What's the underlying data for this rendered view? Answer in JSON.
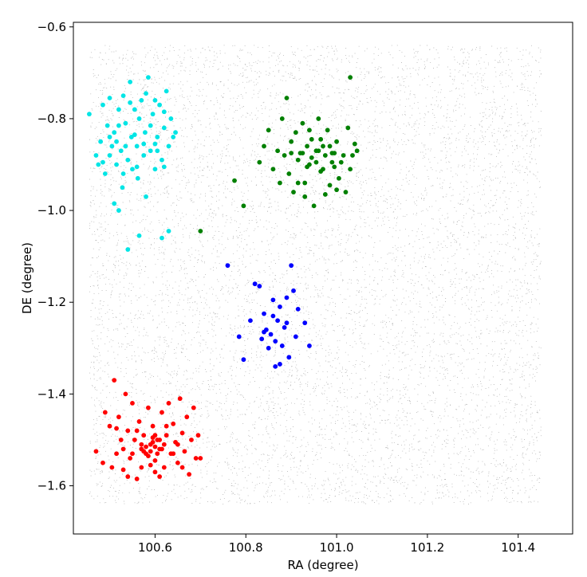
{
  "chart_data": {
    "type": "scatter",
    "title": "",
    "xlabel": "RA (degree)",
    "ylabel": "DE (degree)",
    "xlim": [
      100.42,
      101.52
    ],
    "ylim": [
      -1.705,
      -0.59
    ],
    "xticks": [
      100.6,
      100.8,
      101.0,
      101.2,
      101.4
    ],
    "xtick_labels": [
      "100.6",
      "100.8",
      "101.0",
      "101.2",
      "101.4"
    ],
    "yticks": [
      -0.6,
      -0.8,
      -1.0,
      -1.2,
      -1.4,
      -1.6
    ],
    "ytick_labels": [
      "−0.6",
      "−0.8",
      "−1.0",
      "−1.2",
      "−1.4",
      "−1.6"
    ],
    "grid": false,
    "background_field": {
      "color": "#808080",
      "x_range": [
        100.455,
        101.45
      ],
      "y_range": [
        -1.64,
        -0.64
      ],
      "count": 9000
    },
    "series": [
      {
        "color": "#00e5e5",
        "points": [
          [
            100.455,
            -0.79
          ],
          [
            100.47,
            -0.88
          ],
          [
            100.475,
            -0.9
          ],
          [
            100.48,
            -0.85
          ],
          [
            100.485,
            -0.77
          ],
          [
            100.49,
            -0.92
          ],
          [
            100.495,
            -0.815
          ],
          [
            100.5,
            -0.755
          ],
          [
            100.505,
            -0.86
          ],
          [
            100.51,
            -0.83
          ],
          [
            100.515,
            -0.9
          ],
          [
            100.52,
            -0.78
          ],
          [
            100.525,
            -0.87
          ],
          [
            100.528,
            -0.95
          ],
          [
            100.53,
            -0.75
          ],
          [
            100.535,
            -0.81
          ],
          [
            100.54,
            -0.89
          ],
          [
            100.545,
            -0.72
          ],
          [
            100.548,
            -0.84
          ],
          [
            100.55,
            -0.91
          ],
          [
            100.555,
            -0.78
          ],
          [
            100.56,
            -0.86
          ],
          [
            100.562,
            -0.93
          ],
          [
            100.565,
            -0.8
          ],
          [
            100.57,
            -0.76
          ],
          [
            100.575,
            -0.88
          ],
          [
            100.578,
            -0.83
          ],
          [
            100.58,
            -0.97
          ],
          [
            100.585,
            -0.71
          ],
          [
            100.59,
            -0.87
          ],
          [
            100.595,
            -0.79
          ],
          [
            100.6,
            -0.91
          ],
          [
            100.605,
            -0.84
          ],
          [
            100.61,
            -0.77
          ],
          [
            100.615,
            -0.89
          ],
          [
            100.62,
            -0.82
          ],
          [
            100.625,
            -0.74
          ],
          [
            100.63,
            -0.86
          ],
          [
            100.635,
            -0.8
          ],
          [
            100.64,
            -0.84
          ],
          [
            100.645,
            -0.83
          ],
          [
            100.5,
            -0.88
          ],
          [
            100.51,
            -0.985
          ],
          [
            100.52,
            -1.0
          ],
          [
            100.54,
            -1.085
          ],
          [
            100.565,
            -1.055
          ],
          [
            100.615,
            -1.06
          ],
          [
            100.63,
            -1.045
          ],
          [
            100.5,
            -0.84
          ],
          [
            100.52,
            -0.815
          ],
          [
            100.535,
            -0.86
          ],
          [
            100.555,
            -0.835
          ],
          [
            100.575,
            -0.855
          ],
          [
            100.59,
            -0.815
          ],
          [
            100.605,
            -0.87
          ],
          [
            100.485,
            -0.895
          ],
          [
            100.6,
            -0.855
          ],
          [
            100.62,
            -0.905
          ],
          [
            100.58,
            -0.745
          ],
          [
            100.53,
            -0.92
          ],
          [
            100.56,
            -0.905
          ],
          [
            100.6,
            -0.76
          ],
          [
            100.515,
            -0.85
          ],
          [
            100.545,
            -0.765
          ],
          [
            100.62,
            -0.785
          ]
        ]
      },
      {
        "color": "#008000",
        "points": [
          [
            100.7,
            -1.045
          ],
          [
            100.775,
            -0.935
          ],
          [
            100.795,
            -0.99
          ],
          [
            100.83,
            -0.895
          ],
          [
            100.84,
            -0.86
          ],
          [
            100.85,
            -0.825
          ],
          [
            100.86,
            -0.91
          ],
          [
            100.87,
            -0.87
          ],
          [
            100.875,
            -0.94
          ],
          [
            100.88,
            -0.8
          ],
          [
            100.885,
            -0.88
          ],
          [
            100.89,
            -0.755
          ],
          [
            100.895,
            -0.92
          ],
          [
            100.9,
            -0.85
          ],
          [
            100.905,
            -0.96
          ],
          [
            100.91,
            -0.83
          ],
          [
            100.915,
            -0.89
          ],
          [
            100.92,
            -0.875
          ],
          [
            100.925,
            -0.81
          ],
          [
            100.93,
            -0.94
          ],
          [
            100.935,
            -0.86
          ],
          [
            100.94,
            -0.9
          ],
          [
            100.945,
            -0.845
          ],
          [
            100.95,
            -0.99
          ],
          [
            100.955,
            -0.87
          ],
          [
            100.96,
            -0.8
          ],
          [
            100.965,
            -0.915
          ],
          [
            100.97,
            -0.86
          ],
          [
            100.975,
            -0.88
          ],
          [
            100.98,
            -0.825
          ],
          [
            100.985,
            -0.945
          ],
          [
            100.99,
            -0.875
          ],
          [
            100.995,
            -0.905
          ],
          [
            101.0,
            -0.85
          ],
          [
            101.005,
            -0.93
          ],
          [
            101.01,
            -0.895
          ],
          [
            101.015,
            -0.88
          ],
          [
            101.02,
            -0.96
          ],
          [
            101.025,
            -0.82
          ],
          [
            101.03,
            -0.91
          ],
          [
            101.035,
            -0.88
          ],
          [
            101.04,
            -0.855
          ],
          [
            101.045,
            -0.87
          ],
          [
            101.03,
            -0.71
          ],
          [
            100.925,
            -0.875
          ],
          [
            100.945,
            -0.885
          ],
          [
            100.955,
            -0.895
          ],
          [
            100.96,
            -0.87
          ],
          [
            100.97,
            -0.91
          ],
          [
            100.965,
            -0.845
          ],
          [
            100.985,
            -0.86
          ],
          [
            100.99,
            -0.895
          ],
          [
            100.995,
            -0.875
          ],
          [
            100.975,
            -0.965
          ],
          [
            100.935,
            -0.905
          ],
          [
            100.9,
            -0.875
          ],
          [
            100.915,
            -0.94
          ],
          [
            100.94,
            -0.825
          ],
          [
            101.0,
            -0.955
          ],
          [
            100.93,
            -0.97
          ]
        ]
      },
      {
        "color": "#0000ff",
        "points": [
          [
            100.76,
            -1.12
          ],
          [
            100.785,
            -1.275
          ],
          [
            100.795,
            -1.325
          ],
          [
            100.81,
            -1.24
          ],
          [
            100.82,
            -1.16
          ],
          [
            100.83,
            -1.165
          ],
          [
            100.835,
            -1.28
          ],
          [
            100.84,
            -1.225
          ],
          [
            100.845,
            -1.26
          ],
          [
            100.85,
            -1.3
          ],
          [
            100.855,
            -1.27
          ],
          [
            100.86,
            -1.195
          ],
          [
            100.865,
            -1.34
          ],
          [
            100.87,
            -1.24
          ],
          [
            100.875,
            -1.21
          ],
          [
            100.88,
            -1.295
          ],
          [
            100.885,
            -1.255
          ],
          [
            100.89,
            -1.19
          ],
          [
            100.895,
            -1.32
          ],
          [
            100.9,
            -1.12
          ],
          [
            100.905,
            -1.175
          ],
          [
            100.91,
            -1.275
          ],
          [
            100.915,
            -1.215
          ],
          [
            100.93,
            -1.245
          ],
          [
            100.94,
            -1.295
          ],
          [
            100.84,
            -1.265
          ],
          [
            100.86,
            -1.23
          ],
          [
            100.875,
            -1.335
          ],
          [
            100.89,
            -1.245
          ],
          [
            100.865,
            -1.285
          ]
        ]
      },
      {
        "color": "#ff0000",
        "points": [
          [
            100.47,
            -1.525
          ],
          [
            100.49,
            -1.44
          ],
          [
            100.5,
            -1.47
          ],
          [
            100.505,
            -1.56
          ],
          [
            100.51,
            -1.37
          ],
          [
            100.515,
            -1.53
          ],
          [
            100.52,
            -1.45
          ],
          [
            100.525,
            -1.5
          ],
          [
            100.53,
            -1.565
          ],
          [
            100.535,
            -1.4
          ],
          [
            100.54,
            -1.48
          ],
          [
            100.545,
            -1.54
          ],
          [
            100.55,
            -1.42
          ],
          [
            100.555,
            -1.5
          ],
          [
            100.56,
            -1.585
          ],
          [
            100.565,
            -1.46
          ],
          [
            100.57,
            -1.52
          ],
          [
            100.575,
            -1.49
          ],
          [
            100.58,
            -1.53
          ],
          [
            100.585,
            -1.43
          ],
          [
            100.59,
            -1.51
          ],
          [
            100.595,
            -1.47
          ],
          [
            100.6,
            -1.545
          ],
          [
            100.605,
            -1.5
          ],
          [
            100.61,
            -1.52
          ],
          [
            100.615,
            -1.44
          ],
          [
            100.62,
            -1.56
          ],
          [
            100.625,
            -1.49
          ],
          [
            100.63,
            -1.42
          ],
          [
            100.635,
            -1.53
          ],
          [
            100.64,
            -1.465
          ],
          [
            100.645,
            -1.505
          ],
          [
            100.65,
            -1.55
          ],
          [
            100.655,
            -1.41
          ],
          [
            100.66,
            -1.485
          ],
          [
            100.665,
            -1.525
          ],
          [
            100.67,
            -1.45
          ],
          [
            100.675,
            -1.575
          ],
          [
            100.68,
            -1.5
          ],
          [
            100.685,
            -1.43
          ],
          [
            100.69,
            -1.54
          ],
          [
            100.695,
            -1.49
          ],
          [
            100.7,
            -1.54
          ],
          [
            100.57,
            -1.51
          ],
          [
            100.58,
            -1.515
          ],
          [
            100.59,
            -1.525
          ],
          [
            100.595,
            -1.505
          ],
          [
            100.6,
            -1.515
          ],
          [
            100.605,
            -1.53
          ],
          [
            100.61,
            -1.5
          ],
          [
            100.585,
            -1.535
          ],
          [
            100.575,
            -1.525
          ],
          [
            100.595,
            -1.495
          ],
          [
            100.615,
            -1.52
          ],
          [
            100.6,
            -1.49
          ],
          [
            100.55,
            -1.53
          ],
          [
            100.62,
            -1.51
          ],
          [
            100.59,
            -1.555
          ],
          [
            100.6,
            -1.57
          ],
          [
            100.57,
            -1.56
          ],
          [
            100.53,
            -1.52
          ],
          [
            100.64,
            -1.53
          ],
          [
            100.65,
            -1.51
          ],
          [
            100.56,
            -1.48
          ],
          [
            100.61,
            -1.58
          ],
          [
            100.485,
            -1.55
          ],
          [
            100.515,
            -1.475
          ],
          [
            100.54,
            -1.58
          ],
          [
            100.625,
            -1.47
          ],
          [
            100.66,
            -1.56
          ]
        ]
      }
    ]
  }
}
